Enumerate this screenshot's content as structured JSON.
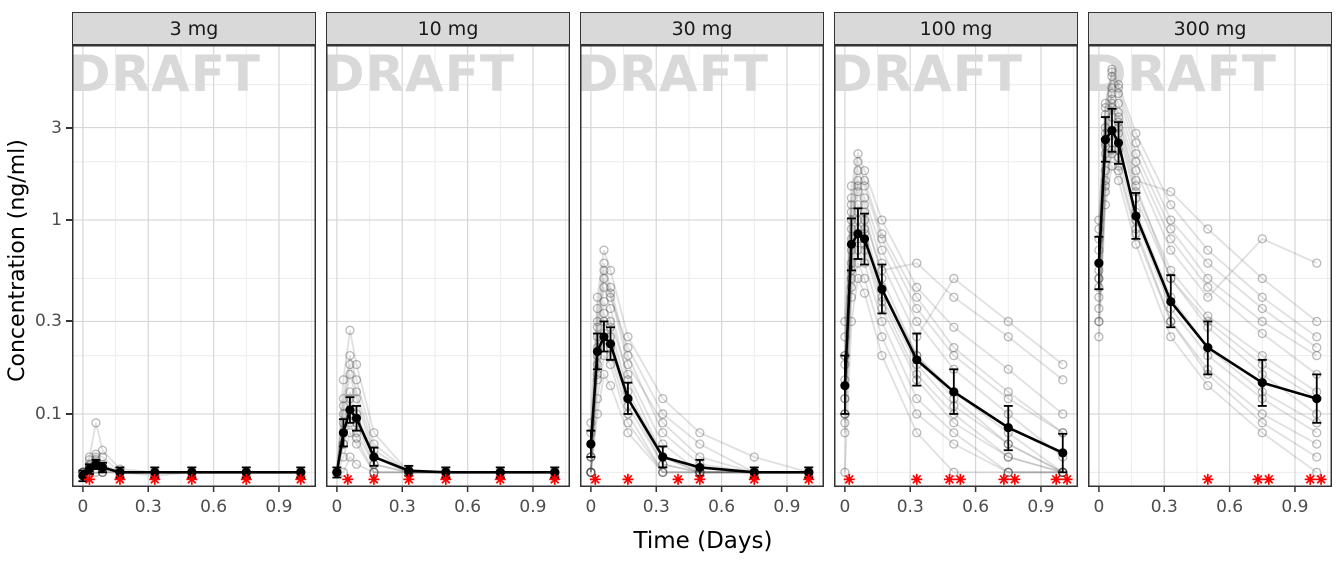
{
  "figure": {
    "watermark": "DRAFT",
    "accent_red": "#FF0000",
    "strip_bg": "#D9D9D9"
  },
  "chart_data": {
    "type": "line",
    "title": "",
    "xlabel": "Time (Days)",
    "ylabel": "Concentration (ng/ml)",
    "legend": "none",
    "grid": true,
    "y_scale": "log10",
    "xlim": [
      -0.05,
      1.07
    ],
    "ylim": [
      0.042,
      8
    ],
    "x_ticks": [
      0,
      0.3,
      0.6,
      0.9
    ],
    "y_ticks": [
      3,
      1,
      0.3,
      0.1
    ],
    "grid_minor_y": [
      0.05,
      0.2,
      0.5,
      2,
      5
    ],
    "grid_major_y": [
      0.1,
      0.3,
      1,
      3
    ],
    "grid_minor_x": [
      0.15,
      0.45,
      0.75,
      1.05
    ],
    "grid_major_x": [
      0,
      0.3,
      0.6,
      0.9
    ],
    "blq_y": 0.046,
    "times": [
      0,
      0.03,
      0.06,
      0.09,
      0.17,
      0.33,
      0.5,
      0.75,
      1.0
    ],
    "panels": [
      {
        "label": "3 mg",
        "mean": [
          0.048,
          0.052,
          0.055,
          0.053,
          0.05,
          0.05,
          0.05,
          0.05,
          0.05
        ],
        "lo": [
          0.045,
          0.049,
          0.052,
          0.05,
          0.047,
          0.047,
          0.047,
          0.047,
          0.047
        ],
        "hi": [
          0.051,
          0.055,
          0.058,
          0.056,
          0.053,
          0.053,
          0.053,
          0.053,
          0.053
        ],
        "blq_times": [
          0.03,
          0.17,
          0.33,
          0.5,
          0.75,
          1.0
        ],
        "individuals": [
          [
            0.05,
            0.05,
            0.052,
            0.05,
            0.05,
            0.05,
            0.05,
            0.05,
            0.05
          ],
          [
            0.048,
            0.055,
            0.058,
            0.052,
            0.05,
            0.048,
            0.05,
            0.05,
            0.05
          ],
          [
            0.05,
            0.06,
            0.09,
            0.065,
            0.052,
            0.05,
            0.05,
            0.05,
            0.05
          ],
          [
            0.05,
            0.052,
            0.055,
            0.05,
            0.05,
            0.05,
            0.05,
            0.05,
            0.05
          ],
          [
            0.05,
            0.058,
            0.062,
            0.06,
            0.05,
            0.05,
            0.05,
            0.05,
            0.05
          ],
          [
            0.05,
            0.05,
            0.05,
            0.05,
            0.05,
            0.05,
            0.05,
            0.05,
            0.05
          ],
          [
            0.048,
            0.05,
            0.055,
            0.053,
            0.05,
            0.05,
            0.05,
            0.05,
            0.05
          ],
          [
            0.05,
            0.054,
            0.06,
            0.055,
            0.05,
            0.05,
            0.05,
            0.05,
            0.05
          ]
        ]
      },
      {
        "label": "10 mg",
        "mean": [
          0.05,
          0.08,
          0.105,
          0.095,
          0.06,
          0.051,
          0.05,
          0.05,
          0.05
        ],
        "lo": [
          0.047,
          0.068,
          0.09,
          0.082,
          0.054,
          0.048,
          0.047,
          0.047,
          0.047
        ],
        "hi": [
          0.053,
          0.094,
          0.122,
          0.11,
          0.067,
          0.054,
          0.053,
          0.053,
          0.053
        ],
        "blq_times": [
          0.05,
          0.17,
          0.33,
          0.5,
          0.75,
          1.0
        ],
        "individuals": [
          [
            0.05,
            0.09,
            0.13,
            0.1,
            0.06,
            0.05,
            0.05,
            0.05,
            0.05
          ],
          [
            0.05,
            0.12,
            0.2,
            0.15,
            0.07,
            0.05,
            0.05,
            0.05,
            0.05
          ],
          [
            0.05,
            0.07,
            0.1,
            0.08,
            0.055,
            0.05,
            0.05,
            0.05,
            0.05
          ],
          [
            0.05,
            0.15,
            0.27,
            0.18,
            0.08,
            0.05,
            0.05,
            0.05,
            0.05
          ],
          [
            0.05,
            0.06,
            0.08,
            0.07,
            0.05,
            0.05,
            0.05,
            0.05,
            0.05
          ],
          [
            0.05,
            0.1,
            0.16,
            0.12,
            0.06,
            0.05,
            0.05,
            0.05,
            0.05
          ],
          [
            0.05,
            0.08,
            0.12,
            0.09,
            0.055,
            0.05,
            0.05,
            0.05,
            0.05
          ],
          [
            0.05,
            0.05,
            0.06,
            0.055,
            0.05,
            0.05,
            0.05,
            0.05,
            0.05
          ],
          [
            0.05,
            0.11,
            0.18,
            0.13,
            0.065,
            0.05,
            0.05,
            0.05,
            0.05
          ],
          [
            0.05,
            0.07,
            0.09,
            0.075,
            0.05,
            0.05,
            0.05,
            0.05,
            0.05
          ]
        ]
      },
      {
        "label": "30 mg",
        "mean": [
          0.07,
          0.21,
          0.25,
          0.23,
          0.12,
          0.06,
          0.053,
          0.05,
          0.05
        ],
        "lo": [
          0.06,
          0.17,
          0.21,
          0.19,
          0.1,
          0.053,
          0.048,
          0.047,
          0.047
        ],
        "hi": [
          0.082,
          0.26,
          0.3,
          0.28,
          0.145,
          0.068,
          0.058,
          0.053,
          0.053
        ],
        "blq_times": [
          0.02,
          0.17,
          0.4,
          0.5,
          0.75,
          1.0
        ],
        "individuals": [
          [
            0.06,
            0.25,
            0.45,
            0.35,
            0.15,
            0.06,
            0.05,
            0.05,
            0.05
          ],
          [
            0.05,
            0.18,
            0.3,
            0.25,
            0.12,
            0.055,
            0.05,
            0.05,
            0.05
          ],
          [
            0.08,
            0.35,
            0.6,
            0.45,
            0.2,
            0.08,
            0.055,
            0.05,
            0.05
          ],
          [
            0.05,
            0.12,
            0.2,
            0.18,
            0.09,
            0.05,
            0.05,
            0.05,
            0.05
          ],
          [
            0.07,
            0.28,
            0.5,
            0.4,
            0.22,
            0.1,
            0.07,
            0.05,
            0.05
          ],
          [
            0.05,
            0.15,
            0.26,
            0.22,
            0.11,
            0.055,
            0.05,
            0.05,
            0.05
          ],
          [
            0.06,
            0.22,
            0.38,
            0.3,
            0.16,
            0.07,
            0.05,
            0.05,
            0.05
          ],
          [
            0.05,
            0.1,
            0.16,
            0.14,
            0.08,
            0.05,
            0.05,
            0.05,
            0.05
          ],
          [
            0.09,
            0.4,
            0.7,
            0.55,
            0.25,
            0.12,
            0.08,
            0.06,
            0.05
          ],
          [
            0.05,
            0.2,
            0.33,
            0.28,
            0.13,
            0.06,
            0.05,
            0.05,
            0.05
          ],
          [
            0.06,
            0.16,
            0.24,
            0.2,
            0.1,
            0.05,
            0.05,
            0.05,
            0.05
          ],
          [
            0.05,
            0.3,
            0.55,
            0.42,
            0.18,
            0.09,
            0.06,
            0.05,
            0.05
          ]
        ]
      },
      {
        "label": "100 mg",
        "mean": [
          0.14,
          0.75,
          0.85,
          0.8,
          0.44,
          0.19,
          0.13,
          0.085,
          0.063
        ],
        "lo": [
          0.1,
          0.55,
          0.63,
          0.59,
          0.33,
          0.14,
          0.1,
          0.065,
          0.05
        ],
        "hi": [
          0.2,
          1.02,
          1.15,
          1.08,
          0.59,
          0.26,
          0.17,
          0.11,
          0.079
        ],
        "blq_times": [
          0.02,
          0.33,
          0.48,
          0.53,
          0.73,
          0.78,
          0.97,
          1.02
        ],
        "individuals": [
          [
            0.12,
            0.9,
            1.4,
            1.1,
            0.5,
            0.2,
            0.12,
            0.07,
            0.05
          ],
          [
            0.2,
            1.2,
            1.8,
            1.5,
            0.8,
            0.35,
            0.2,
            0.12,
            0.08
          ],
          [
            0.1,
            0.5,
            0.8,
            0.7,
            0.35,
            0.15,
            0.09,
            0.06,
            0.05
          ],
          [
            0.3,
            1.5,
            2.2,
            1.8,
            1.0,
            0.45,
            0.28,
            0.17,
            0.1
          ],
          [
            0.08,
            0.4,
            0.6,
            0.5,
            0.25,
            0.1,
            0.07,
            0.05,
            0.05
          ],
          [
            0.15,
            0.8,
            1.2,
            1.0,
            0.55,
            0.6,
            0.4,
            0.25,
            0.15
          ],
          [
            0.1,
            0.6,
            1.0,
            0.85,
            0.4,
            0.18,
            0.11,
            0.07,
            0.05
          ],
          [
            0.25,
            1.1,
            1.6,
            1.3,
            0.7,
            0.3,
            0.17,
            0.1,
            0.06
          ],
          [
            0.05,
            0.3,
            0.5,
            0.42,
            0.2,
            0.08,
            0.05,
            0.05,
            0.05
          ],
          [
            0.18,
            1.0,
            1.5,
            1.2,
            0.6,
            0.25,
            0.5,
            0.3,
            0.18
          ],
          [
            0.12,
            0.7,
            1.1,
            0.9,
            0.45,
            0.2,
            0.13,
            0.08,
            0.05
          ],
          [
            0.1,
            0.55,
            0.9,
            0.75,
            0.38,
            0.16,
            0.1,
            0.06,
            0.05
          ],
          [
            0.2,
            1.3,
            2.0,
            1.6,
            0.85,
            0.4,
            0.22,
            0.13,
            0.08
          ],
          [
            0.09,
            0.45,
            0.7,
            0.6,
            0.3,
            0.12,
            0.08,
            0.05,
            0.05
          ]
        ]
      },
      {
        "label": "300 mg",
        "mean": [
          0.6,
          2.6,
          2.9,
          2.5,
          1.05,
          0.38,
          0.22,
          0.145,
          0.12
        ],
        "lo": [
          0.44,
          2.0,
          2.25,
          1.95,
          0.8,
          0.28,
          0.16,
          0.11,
          0.09
        ],
        "hi": [
          0.82,
          3.4,
          3.75,
          3.2,
          1.38,
          0.52,
          0.3,
          0.19,
          0.16
        ],
        "blq_times": [
          0.5,
          0.73,
          0.78,
          0.97,
          1.02
        ],
        "individuals": [
          [
            0.5,
            2.5,
            4.0,
            3.2,
            1.5,
            0.5,
            0.3,
            0.18,
            0.12
          ],
          [
            0.8,
            3.5,
            5.5,
            4.5,
            2.2,
            0.9,
            0.5,
            0.3,
            0.2
          ],
          [
            0.4,
            1.8,
            2.8,
            2.3,
            1.1,
            0.4,
            0.22,
            0.13,
            0.09
          ],
          [
            1.0,
            4.0,
            6.0,
            5.0,
            2.8,
            1.2,
            0.7,
            0.4,
            0.25
          ],
          [
            0.3,
            1.5,
            2.3,
            1.9,
            0.9,
            0.3,
            0.17,
            0.1,
            0.07
          ],
          [
            0.6,
            2.8,
            4.5,
            3.6,
            1.8,
            0.7,
            0.4,
            0.8,
            0.6
          ],
          [
            0.45,
            2.2,
            3.4,
            2.8,
            1.3,
            0.5,
            0.28,
            0.16,
            0.1
          ],
          [
            0.7,
            3.0,
            4.8,
            4.0,
            2.0,
            0.8,
            0.45,
            0.26,
            0.16
          ],
          [
            0.25,
            1.2,
            1.9,
            1.6,
            0.75,
            0.25,
            0.14,
            0.08,
            0.05
          ],
          [
            0.55,
            2.6,
            4.2,
            3.4,
            1.6,
            1.4,
            0.9,
            0.5,
            0.3
          ],
          [
            0.35,
            1.6,
            2.5,
            2.1,
            1.0,
            0.35,
            0.2,
            0.12,
            0.08
          ],
          [
            0.9,
            3.8,
            5.8,
            4.8,
            2.5,
            1.0,
            0.6,
            0.35,
            0.22
          ],
          [
            0.5,
            2.4,
            3.8,
            3.0,
            1.4,
            0.55,
            0.32,
            0.2,
            0.13
          ],
          [
            0.3,
            1.4,
            2.2,
            1.8,
            0.85,
            0.3,
            0.16,
            0.09,
            0.06
          ]
        ]
      }
    ]
  }
}
